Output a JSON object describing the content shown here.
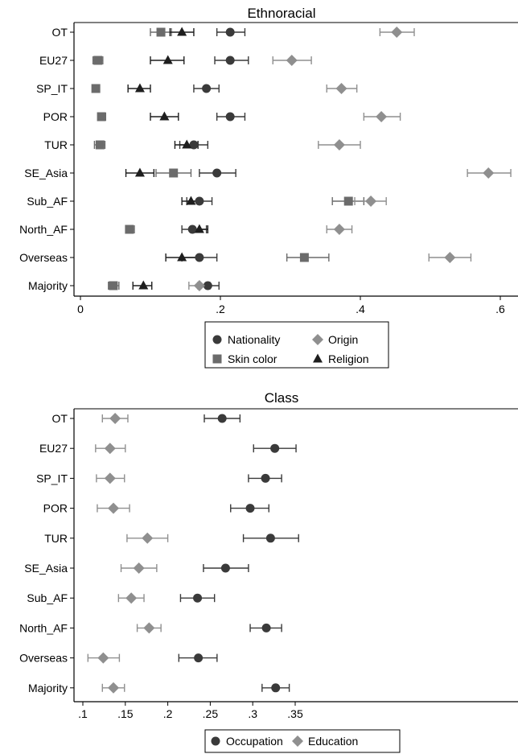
{
  "chart_data": [
    {
      "type": "dot-errorbar",
      "title": "Ethnoracial",
      "xlim": [
        -0.02,
        0.6
      ],
      "ticks": [
        0,
        0.2,
        0.4,
        0.6
      ],
      "tick_labels": [
        "0",
        ".2",
        ".4",
        ".6"
      ],
      "categories": [
        "OT",
        "EU27",
        "SP_IT",
        "POR",
        "TUR",
        "SE_Asia",
        "Sub_AF",
        "North_AF",
        "Overseas",
        "Majority"
      ],
      "legend": {
        "position": "bottom",
        "columns": 2
      },
      "series": [
        {
          "name": "Nationality",
          "marker": "circle",
          "color": "#3a3a3a",
          "values": [
            0.214,
            0.214,
            0.18,
            0.214,
            0.162,
            0.195,
            0.17,
            0.16,
            0.17,
            0.182
          ],
          "ci_low": [
            0.195,
            0.192,
            0.162,
            0.195,
            0.142,
            0.17,
            0.152,
            0.145,
            0.145,
            0.168
          ],
          "ci_high": [
            0.235,
            0.24,
            0.198,
            0.235,
            0.182,
            0.222,
            0.188,
            0.18,
            0.195,
            0.198
          ]
        },
        {
          "name": "Skin color",
          "marker": "square",
          "color": "#6b6b6b",
          "values": [
            0.115,
            0.025,
            0.022,
            0.03,
            0.028,
            0.133,
            0.383,
            0.07,
            0.32,
            0.047
          ],
          "ci_low": [
            0.1,
            0.018,
            0.018,
            0.025,
            0.02,
            0.108,
            0.36,
            0.065,
            0.295,
            0.04
          ],
          "ci_high": [
            0.13,
            0.032,
            0.027,
            0.036,
            0.035,
            0.158,
            0.405,
            0.077,
            0.355,
            0.055
          ]
        },
        {
          "name": "Origin",
          "marker": "diamond",
          "color": "#8f8f8f",
          "values": [
            0.452,
            0.302,
            0.373,
            0.43,
            0.37,
            0.583,
            0.415,
            0.37,
            0.528,
            0.17
          ],
          "ci_low": [
            0.428,
            0.275,
            0.352,
            0.405,
            0.34,
            0.553,
            0.392,
            0.352,
            0.498,
            0.155
          ],
          "ci_high": [
            0.477,
            0.33,
            0.395,
            0.457,
            0.4,
            0.615,
            0.437,
            0.388,
            0.558,
            0.185
          ]
        },
        {
          "name": "Religion",
          "marker": "triangle",
          "color": "#1e1e1e",
          "values": [
            0.145,
            0.125,
            0.085,
            0.12,
            0.152,
            0.085,
            0.158,
            0.17,
            0.145,
            0.09
          ],
          "ci_low": [
            0.128,
            0.1,
            0.068,
            0.1,
            0.135,
            0.065,
            0.145,
            0.158,
            0.122,
            0.075
          ],
          "ci_high": [
            0.162,
            0.148,
            0.1,
            0.14,
            0.168,
            0.105,
            0.172,
            0.182,
            0.168,
            0.102
          ]
        }
      ]
    },
    {
      "type": "dot-errorbar",
      "title": "Class",
      "xlim": [
        0.1,
        0.355
      ],
      "ticks": [
        0.1,
        0.15,
        0.2,
        0.25,
        0.3,
        0.35
      ],
      "tick_labels": [
        ".1",
        ".15",
        ".2",
        ".25",
        ".3",
        ".35"
      ],
      "categories": [
        "OT",
        "EU27",
        "SP_IT",
        "POR",
        "TUR",
        "SE_Asia",
        "Sub_AF",
        "North_AF",
        "Overseas",
        "Majority"
      ],
      "legend": {
        "position": "bottom",
        "columns": 2
      },
      "series": [
        {
          "name": "Occupation",
          "marker": "circle",
          "color": "#3a3a3a",
          "values": [
            0.264,
            0.326,
            0.315,
            0.297,
            0.321,
            0.268,
            0.235,
            0.316,
            0.236,
            0.327
          ],
          "ci_low": [
            0.243,
            0.301,
            0.295,
            0.274,
            0.289,
            0.242,
            0.215,
            0.297,
            0.213,
            0.311
          ],
          "ci_high": [
            0.285,
            0.351,
            0.334,
            0.319,
            0.354,
            0.295,
            0.255,
            0.334,
            0.258,
            0.343
          ]
        },
        {
          "name": "Education",
          "marker": "diamond",
          "color": "#8f8f8f",
          "values": [
            0.138,
            0.132,
            0.132,
            0.136,
            0.176,
            0.166,
            0.157,
            0.178,
            0.124,
            0.136
          ],
          "ci_low": [
            0.123,
            0.115,
            0.116,
            0.117,
            0.152,
            0.145,
            0.142,
            0.164,
            0.106,
            0.123
          ],
          "ci_high": [
            0.153,
            0.15,
            0.149,
            0.155,
            0.2,
            0.187,
            0.172,
            0.192,
            0.143,
            0.149
          ]
        }
      ]
    }
  ]
}
